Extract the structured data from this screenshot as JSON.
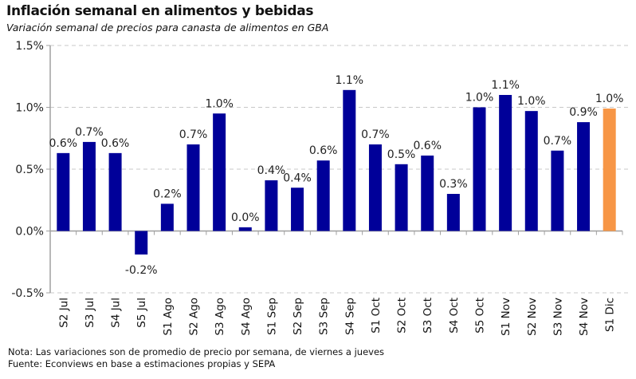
{
  "chart_data": {
    "type": "bar",
    "title": "Inflación semanal en alimentos y bebidas",
    "subtitle": "Variación semanal de precios para canasta de alimentos en GBA",
    "xlabel": "",
    "ylabel": "",
    "ylim": [
      -0.5,
      1.5
    ],
    "yticks": [
      "-0.5%",
      "0.0%",
      "0.5%",
      "1.0%",
      "1.5%"
    ],
    "ytick_values": [
      -0.5,
      0,
      0.5,
      1.0,
      1.5
    ],
    "grid": "horizontal dashed",
    "categories": [
      "S2 Jul",
      "S3 Jul",
      "S4 Jul",
      "S5 Jul",
      "S1 Ago",
      "S2 Ago",
      "S3 Ago",
      "S4 Ago",
      "S1 Sep",
      "S2 Sep",
      "S3 Sep",
      "S4 Sep",
      "S1 Oct",
      "S2 Oct",
      "S3 Oct",
      "S4 Oct",
      "S5 Oct",
      "S1 Nov",
      "S2 Nov",
      "S3 Nov",
      "S4 Nov",
      "S1 Dic"
    ],
    "values": [
      0.63,
      0.72,
      0.63,
      -0.19,
      0.22,
      0.7,
      0.95,
      0.03,
      0.41,
      0.35,
      0.57,
      1.14,
      0.7,
      0.54,
      0.61,
      0.3,
      1.0,
      1.1,
      0.97,
      0.65,
      0.88,
      0.99
    ],
    "data_labels": [
      "0.6%",
      "0.7%",
      "0.6%",
      "-0.2%",
      "0.2%",
      "0.7%",
      "1.0%",
      "0.0%",
      "0.4%",
      "0.4%",
      "0.6%",
      "1.1%",
      "0.7%",
      "0.5%",
      "0.6%",
      "0.3%",
      "1.0%",
      "1.1%",
      "1.0%",
      "0.7%",
      "0.9%",
      "1.0%"
    ],
    "colors": {
      "bar": "#000099",
      "highlight": "#F79646",
      "grid": "#c8c8c8",
      "axis": "#a0a0a0"
    },
    "highlight_index": 21
  },
  "notes": {
    "nota": "Nota: Las variaciones son de promedio de precio por semana, de viernes a jueves",
    "fuente": "Fuente: Econviews en base a estimaciones propias y SEPA"
  }
}
